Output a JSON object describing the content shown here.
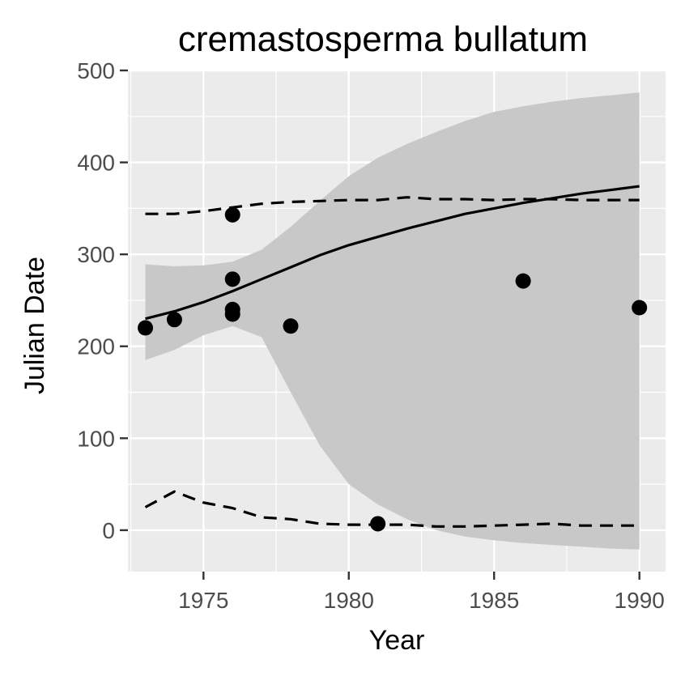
{
  "chart_data": {
    "type": "scatter",
    "title": "cremastosperma bullatum",
    "xlabel": "Year",
    "ylabel": "Julian Date",
    "xlim": [
      1972.4,
      1990.9
    ],
    "ylim": [
      -45,
      500
    ],
    "x_ticks": [
      1975,
      1980,
      1985,
      1990
    ],
    "y_ticks": [
      0,
      100,
      200,
      300,
      400,
      500
    ],
    "grid": true,
    "legend": "none",
    "colors": {
      "panel": "#ebebeb",
      "grid": "#ffffff",
      "ribbon": "#c8c8c8",
      "points": "#000000",
      "lines": "#000000",
      "tick_text": "#4d4d4d"
    },
    "points": [
      {
        "x": 1973,
        "y": 220
      },
      {
        "x": 1974,
        "y": 229
      },
      {
        "x": 1976,
        "y": 343
      },
      {
        "x": 1976,
        "y": 273
      },
      {
        "x": 1976,
        "y": 240
      },
      {
        "x": 1976,
        "y": 235
      },
      {
        "x": 1978,
        "y": 222
      },
      {
        "x": 1981,
        "y": 7
      },
      {
        "x": 1986,
        "y": 271
      },
      {
        "x": 1990,
        "y": 242
      }
    ],
    "fit_line": {
      "x": [
        1973,
        1974,
        1975,
        1976,
        1977,
        1978,
        1979,
        1980,
        1981,
        1982,
        1983,
        1984,
        1985,
        1986,
        1987,
        1988,
        1989,
        1990
      ],
      "y": [
        230,
        238,
        248,
        260,
        273,
        286,
        299,
        310,
        319,
        328,
        336,
        344,
        350,
        356,
        361,
        366,
        370,
        374
      ]
    },
    "ribbon": {
      "x": [
        1973,
        1974,
        1975,
        1976,
        1977,
        1978,
        1979,
        1980,
        1981,
        1982,
        1983,
        1984,
        1985,
        1986,
        1987,
        1988,
        1989,
        1990
      ],
      "upper": [
        289,
        287,
        288,
        292,
        305,
        330,
        358,
        385,
        405,
        420,
        433,
        445,
        455,
        461,
        466,
        470,
        473,
        476
      ],
      "lower": [
        185,
        196,
        212,
        222,
        210,
        150,
        92,
        50,
        28,
        12,
        0,
        -7,
        -11,
        -14,
        -16,
        -18,
        -20,
        -21
      ]
    },
    "upper_quantile": {
      "x": [
        1973,
        1974,
        1975,
        1976,
        1977,
        1978,
        1979,
        1980,
        1981,
        1982,
        1983,
        1984,
        1985,
        1986,
        1987,
        1988,
        1989,
        1990
      ],
      "y": [
        344,
        344,
        347,
        351,
        355,
        357,
        358,
        359,
        359,
        362,
        360,
        360,
        359,
        360,
        360,
        359,
        359,
        359
      ]
    },
    "lower_quantile": {
      "x": [
        1973,
        1974,
        1975,
        1976,
        1977,
        1978,
        1979,
        1980,
        1981,
        1982,
        1983,
        1984,
        1985,
        1986,
        1987,
        1988,
        1989,
        1990
      ],
      "y": [
        25,
        42,
        30,
        24,
        14,
        12,
        7,
        6,
        6,
        6,
        4,
        4,
        5,
        6,
        7,
        5,
        5,
        5
      ]
    }
  }
}
